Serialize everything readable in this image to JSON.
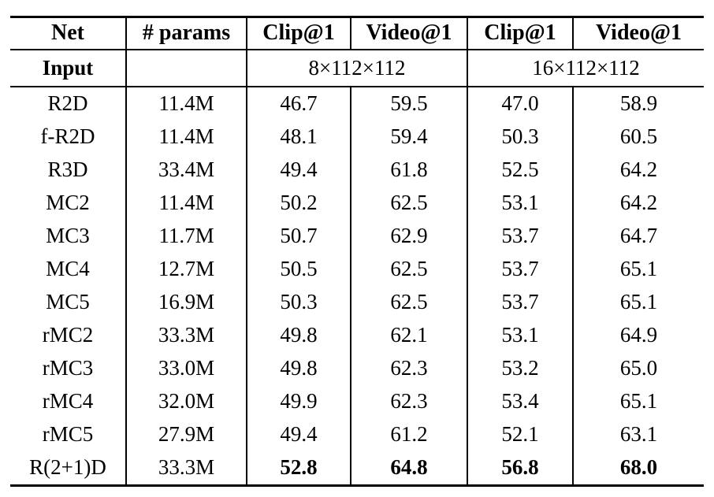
{
  "colors": {
    "background": "#ffffff",
    "text": "#000000",
    "rule": "#000000"
  },
  "table": {
    "header": {
      "net": "Net",
      "params": "# params",
      "clip1_a": "Clip@1",
      "video1_a": "Video@1",
      "clip1_b": "Clip@1",
      "video1_b": "Video@1"
    },
    "input_row": {
      "label": "Input",
      "params": "",
      "group_a": "8×112×112",
      "group_b": "16×112×112"
    },
    "rows": [
      {
        "net": "R2D",
        "params": "11.4M",
        "clip_a": "46.7",
        "video_a": "59.5",
        "clip_b": "47.0",
        "video_b": "58.9",
        "bold_values": false
      },
      {
        "net": "f-R2D",
        "params": "11.4M",
        "clip_a": "48.1",
        "video_a": "59.4",
        "clip_b": "50.3",
        "video_b": "60.5",
        "bold_values": false
      },
      {
        "net": "R3D",
        "params": "33.4M",
        "clip_a": "49.4",
        "video_a": "61.8",
        "clip_b": "52.5",
        "video_b": "64.2",
        "bold_values": false
      },
      {
        "net": "MC2",
        "params": "11.4M",
        "clip_a": "50.2",
        "video_a": "62.5",
        "clip_b": "53.1",
        "video_b": "64.2",
        "bold_values": false
      },
      {
        "net": "MC3",
        "params": "11.7M",
        "clip_a": "50.7",
        "video_a": "62.9",
        "clip_b": "53.7",
        "video_b": "64.7",
        "bold_values": false
      },
      {
        "net": "MC4",
        "params": "12.7M",
        "clip_a": "50.5",
        "video_a": "62.5",
        "clip_b": "53.7",
        "video_b": "65.1",
        "bold_values": false
      },
      {
        "net": "MC5",
        "params": "16.9M",
        "clip_a": "50.3",
        "video_a": "62.5",
        "clip_b": "53.7",
        "video_b": "65.1",
        "bold_values": false
      },
      {
        "net": "rMC2",
        "params": "33.3M",
        "clip_a": "49.8",
        "video_a": "62.1",
        "clip_b": "53.1",
        "video_b": "64.9",
        "bold_values": false
      },
      {
        "net": "rMC3",
        "params": "33.0M",
        "clip_a": "49.8",
        "video_a": "62.3",
        "clip_b": "53.2",
        "video_b": "65.0",
        "bold_values": false
      },
      {
        "net": "rMC4",
        "params": "32.0M",
        "clip_a": "49.9",
        "video_a": "62.3",
        "clip_b": "53.4",
        "video_b": "65.1",
        "bold_values": false
      },
      {
        "net": "rMC5",
        "params": "27.9M",
        "clip_a": "49.4",
        "video_a": "61.2",
        "clip_b": "52.1",
        "video_b": "63.1",
        "bold_values": false
      },
      {
        "net": "R(2+1)D",
        "params": "33.3M",
        "clip_a": "52.8",
        "video_a": "64.8",
        "clip_b": "56.8",
        "video_b": "68.0",
        "bold_values": true
      }
    ]
  }
}
